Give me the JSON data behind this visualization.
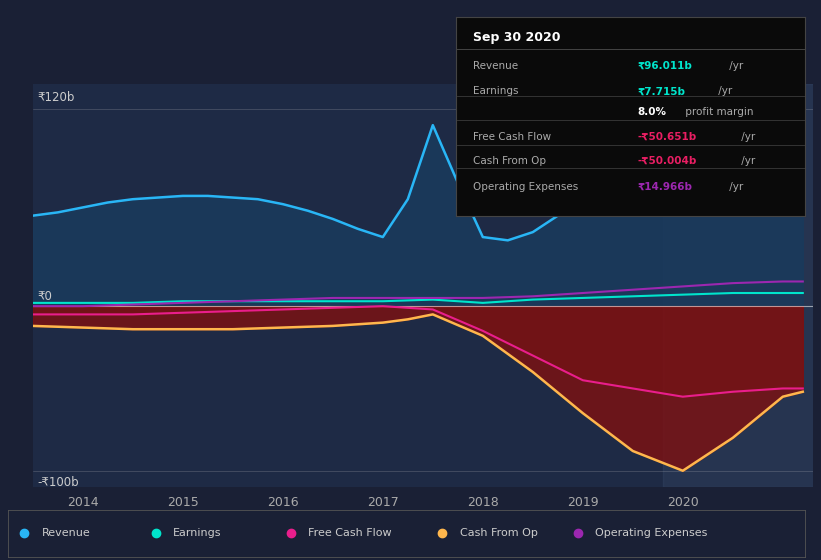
{
  "background_color": "#1a2035",
  "plot_bg_color": "#1e2a45",
  "ylabel_top": "₹120b",
  "ylabel_bottom": "-₹100b",
  "ylabel_zero": "₹0",
  "x_labels": [
    "2014",
    "2015",
    "2016",
    "2017",
    "2018",
    "2019",
    "2020"
  ],
  "x_range": [
    2013.5,
    2021.3
  ],
  "y_range": [
    -110,
    135
  ],
  "highlighted_region_start": 2019.8,
  "colors": {
    "revenue": "#29b6f6",
    "earnings": "#00e5cc",
    "free_cash_flow": "#e91e8c",
    "cash_from_op": "#ffb74d",
    "operating_expenses": "#9c27b0",
    "revenue_fill": "#1a3a5c",
    "negative_fill": "#7f1010"
  },
  "legend": [
    {
      "label": "Revenue",
      "color": "#29b6f6"
    },
    {
      "label": "Earnings",
      "color": "#00e5cc"
    },
    {
      "label": "Free Cash Flow",
      "color": "#e91e8c"
    },
    {
      "label": "Cash From Op",
      "color": "#ffb74d"
    },
    {
      "label": "Operating Expenses",
      "color": "#9c27b0"
    }
  ],
  "tooltip_title": "Sep 30 2020",
  "tooltip_rows": [
    {
      "label": "Revenue",
      "value": "₹96.011b",
      "suffix": " /yr",
      "value_color": "#00e5cc",
      "bold_value": true
    },
    {
      "label": "Earnings",
      "value": "₹7.715b",
      "suffix": " /yr",
      "value_color": "#00e5cc",
      "bold_value": true
    },
    {
      "label": "",
      "value": "8.0%",
      "suffix": " profit margin",
      "value_color": "#ffffff",
      "bold_value": true
    },
    {
      "label": "Free Cash Flow",
      "value": "-₹50.651b",
      "suffix": " /yr",
      "value_color": "#e91e63",
      "bold_value": true
    },
    {
      "label": "Cash From Op",
      "value": "-₹50.004b",
      "suffix": " /yr",
      "value_color": "#e91e63",
      "bold_value": true
    },
    {
      "label": "Operating Expenses",
      "value": "₹14.966b",
      "suffix": " /yr",
      "value_color": "#9c27b0",
      "bold_value": true
    }
  ],
  "revenue_x": [
    2013.5,
    2013.75,
    2014.0,
    2014.25,
    2014.5,
    2014.75,
    2015.0,
    2015.25,
    2015.5,
    2015.75,
    2016.0,
    2016.25,
    2016.5,
    2016.75,
    2017.0,
    2017.25,
    2017.5,
    2017.75,
    2018.0,
    2018.25,
    2018.5,
    2018.75,
    2019.0,
    2019.25,
    2019.5,
    2019.75,
    2020.0,
    2020.25,
    2020.5,
    2020.75,
    2021.0,
    2021.2
  ],
  "revenue_y": [
    55,
    57,
    60,
    63,
    65,
    66,
    67,
    67,
    66,
    65,
    62,
    58,
    53,
    47,
    42,
    65,
    110,
    75,
    42,
    40,
    45,
    55,
    65,
    75,
    82,
    85,
    88,
    92,
    95,
    97,
    96,
    95
  ],
  "earnings_x": [
    2013.5,
    2014.0,
    2014.5,
    2015.0,
    2015.5,
    2016.0,
    2016.5,
    2017.0,
    2017.5,
    2018.0,
    2018.5,
    2019.0,
    2019.5,
    2020.0,
    2020.5,
    2021.0,
    2021.2
  ],
  "earnings_y": [
    2,
    2,
    2,
    3,
    3,
    3,
    3,
    3,
    4,
    2,
    4,
    5,
    6,
    7,
    8,
    8,
    8
  ],
  "fcf_x": [
    2013.5,
    2014.0,
    2014.5,
    2015.0,
    2015.5,
    2016.0,
    2016.5,
    2017.0,
    2017.5,
    2018.0,
    2018.5,
    2019.0,
    2019.5,
    2020.0,
    2020.5,
    2021.0,
    2021.2
  ],
  "fcf_y": [
    -5,
    -5,
    -5,
    -4,
    -3,
    -2,
    -1,
    0,
    -2,
    -15,
    -30,
    -45,
    -50,
    -55,
    -52,
    -50,
    -50
  ],
  "cfo_x": [
    2013.5,
    2014.0,
    2014.5,
    2015.0,
    2015.5,
    2016.0,
    2016.5,
    2017.0,
    2017.25,
    2017.5,
    2018.0,
    2018.5,
    2019.0,
    2019.5,
    2020.0,
    2020.5,
    2021.0,
    2021.2
  ],
  "cfo_y": [
    -12,
    -13,
    -14,
    -14,
    -14,
    -13,
    -12,
    -10,
    -8,
    -5,
    -18,
    -40,
    -65,
    -88,
    -100,
    -80,
    -55,
    -52
  ],
  "opex_x": [
    2013.5,
    2014.0,
    2014.5,
    2015.0,
    2015.5,
    2016.0,
    2016.5,
    2017.0,
    2017.5,
    2018.0,
    2018.5,
    2019.0,
    2019.5,
    2020.0,
    2020.5,
    2021.0,
    2021.2
  ],
  "opex_y": [
    0,
    0,
    1,
    2,
    3,
    4,
    5,
    5,
    5,
    5,
    6,
    8,
    10,
    12,
    14,
    15,
    15
  ]
}
